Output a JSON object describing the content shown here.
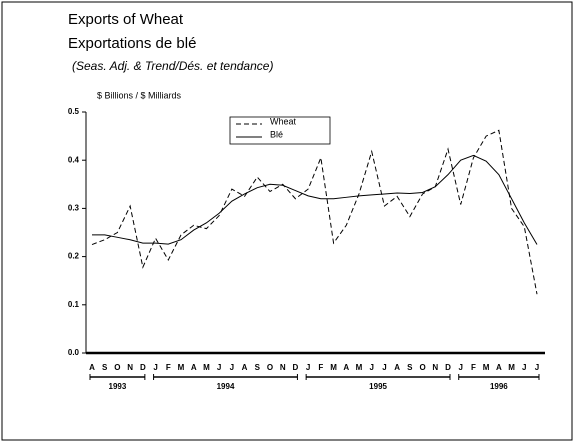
{
  "chart_data": {
    "type": "line",
    "title": "Exports of Wheat",
    "title_fr": "Exportations de blé",
    "subtitle": "(Seas. Adj. & Trend/Dés. et tendance)",
    "y_label": "$ Billions / $ Milliards",
    "categories": [
      "A",
      "S",
      "O",
      "N",
      "D",
      "J",
      "F",
      "M",
      "A",
      "M",
      "J",
      "J",
      "A",
      "S",
      "O",
      "N",
      "D",
      "J",
      "F",
      "M",
      "A",
      "M",
      "J",
      "J",
      "A",
      "S",
      "O",
      "N",
      "D",
      "J",
      "F",
      "M",
      "A",
      "M",
      "J",
      "J"
    ],
    "years": [
      "1993",
      "1994",
      "1995",
      "1996"
    ],
    "series": [
      {
        "name": "Wheat",
        "color": "#000000",
        "dash": true,
        "values": [
          0.225,
          0.235,
          0.25,
          0.305,
          0.178,
          0.238,
          0.193,
          0.245,
          0.265,
          0.258,
          0.285,
          0.34,
          0.325,
          0.365,
          0.335,
          0.35,
          0.32,
          0.34,
          0.405,
          0.228,
          0.265,
          0.33,
          0.418,
          0.305,
          0.325,
          0.283,
          0.33,
          0.345,
          0.423,
          0.308,
          0.405,
          0.45,
          0.462,
          0.3,
          0.262,
          0.122
        ]
      },
      {
        "name": "Blé",
        "color": "#000000",
        "dash": false,
        "values": [
          0.245,
          0.245,
          0.24,
          0.235,
          0.228,
          0.228,
          0.226,
          0.235,
          0.255,
          0.27,
          0.29,
          0.315,
          0.33,
          0.343,
          0.35,
          0.348,
          0.337,
          0.326,
          0.32,
          0.32,
          0.323,
          0.326,
          0.328,
          0.33,
          0.332,
          0.331,
          0.333,
          0.345,
          0.37,
          0.4,
          0.41,
          0.398,
          0.37,
          0.32,
          0.27,
          0.225
        ]
      }
    ],
    "ylim": [
      0,
      0.5
    ],
    "yticks": [
      {
        "value": 0,
        "label": "0.0"
      },
      0.1,
      0.2,
      0.3,
      0.4,
      0.5
    ]
  }
}
